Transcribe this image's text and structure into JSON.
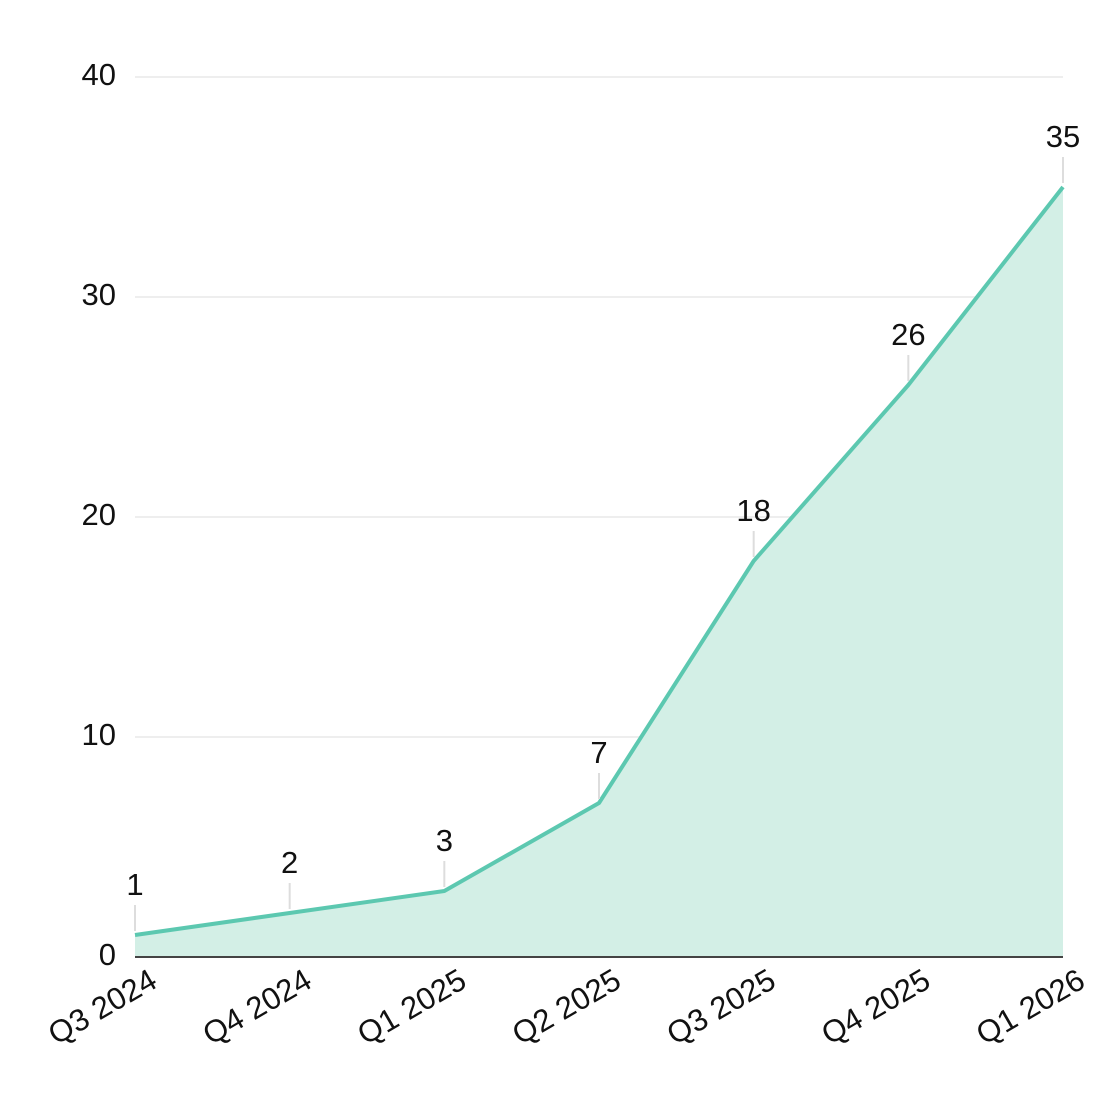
{
  "chart_data": {
    "type": "area",
    "categories": [
      "Q3 2024",
      "Q4 2024",
      "Q1 2025",
      "Q2 2025",
      "Q3 2025",
      "Q4 2025",
      "Q1 2026"
    ],
    "values": [
      1,
      2,
      3,
      7,
      18,
      26,
      35
    ],
    "color": "#5cc8b0",
    "fill": "#d3efe6",
    "ylim": [
      0,
      40
    ],
    "yticks": [
      0,
      10,
      20,
      30,
      40
    ],
    "grid": true
  }
}
